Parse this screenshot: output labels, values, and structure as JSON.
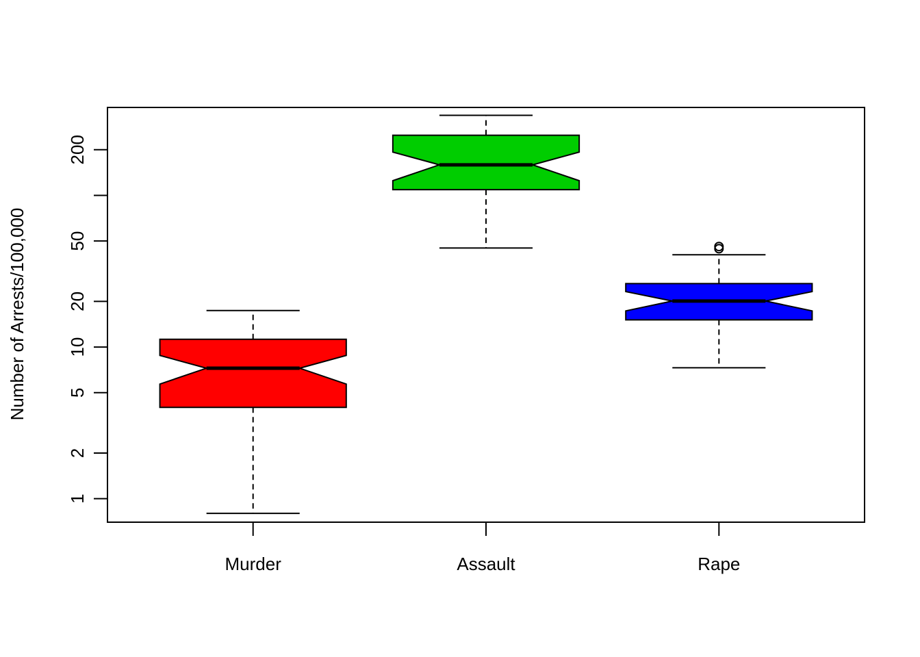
{
  "chart_data": {
    "type": "box",
    "notched": true,
    "y_scale": "log",
    "ylabel": "Number of Arrests/100,000",
    "xlabel": "",
    "title": "",
    "ylim": [
      0.7,
      380
    ],
    "y_ticks": [
      1,
      2,
      5,
      10,
      20,
      50,
      200
    ],
    "y_minor_ticks": [
      100
    ],
    "grid": false,
    "categories": [
      "Murder",
      "Assault",
      "Rape"
    ],
    "boxes": [
      {
        "name": "Murder",
        "color": "#FF0000",
        "whisker_low": 0.8,
        "q1": 4.0,
        "median": 7.25,
        "q3": 11.25,
        "whisker_high": 17.4,
        "notch_low": 5.7,
        "notch_high": 8.8,
        "outliers": []
      },
      {
        "name": "Assault",
        "color": "#00CD00",
        "whisker_low": 45,
        "q1": 109,
        "median": 159,
        "q3": 249,
        "whisker_high": 337,
        "notch_low": 125,
        "notch_high": 193,
        "outliers": []
      },
      {
        "name": "Rape",
        "color": "#0000FF",
        "whisker_low": 7.3,
        "q1": 15.1,
        "median": 20.1,
        "q3": 26.2,
        "whisker_high": 40.6,
        "notch_low": 17.3,
        "notch_high": 23.2,
        "outliers": [
          44.5,
          46
        ]
      }
    ]
  }
}
